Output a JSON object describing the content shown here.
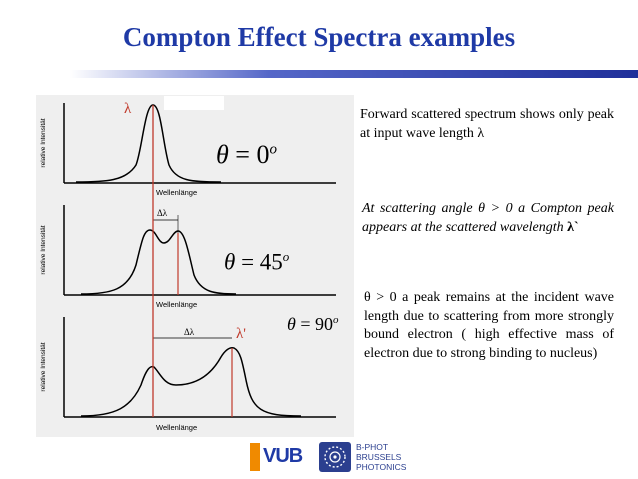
{
  "slide": {
    "title": "Compton Effect Spectra examples",
    "accent_color": "#1f3aa6",
    "shift_line_color": "#c0392b"
  },
  "figure": {
    "ylabel": "relative Intensität",
    "xlabel": "Wellenlänge",
    "lambda_label": "λ",
    "lambda_prime_label": "λ'",
    "delta_label": "Δλ",
    "panels": [
      {
        "theta": "0",
        "unit": "o"
      },
      {
        "theta": "45",
        "unit": "o"
      },
      {
        "theta": "90",
        "unit": "o"
      }
    ]
  },
  "text": {
    "forward": "Forward scattered spectrum shows only peak at input wave length λ",
    "angle_prefix": "At scattering angle θ > 0 a Compton peak appears at the scattered wavelength ",
    "angle_symbol": "λ`",
    "incident": "θ > 0  a peak remains at the incident wave length due to scattering from more strongly bound electron ( high effective mass of electron due to strong binding to nucleus)"
  },
  "footer": {
    "vub_logo": "VUB",
    "bphot_lines": [
      "B-PHOT",
      "BRUSSELS",
      "PHOTONICS"
    ],
    "vub_color": "#1f3aa6",
    "bphot_color": "#2b3f8f"
  }
}
